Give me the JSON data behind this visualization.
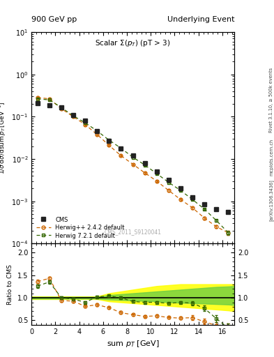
{
  "title_left": "900 GeV pp",
  "title_right": "Underlying Event",
  "plot_title": "Scalar Σ(p_{T}) (pT > 3)",
  "xlabel": "sum p_{T} [GeV]",
  "ylabel_main": "1/σ dσ/dsum p_{T} [GeV⁻¹]",
  "ylabel_ratio": "Ratio to CMS",
  "watermark": "CMS_2011_S9120041",
  "right_label_top": "Rivet 3.1.10, ≥ 500k events",
  "right_label_bot": "[arXiv:1306.3436]",
  "right_label_url": "mcplots.cern.ch",
  "cms_x": [
    0.5,
    1.5,
    2.5,
    3.5,
    4.5,
    5.5,
    6.5,
    7.5,
    8.5,
    9.5,
    10.5,
    11.5,
    12.5,
    13.5,
    14.5,
    15.5,
    16.5
  ],
  "cms_y": [
    0.21,
    0.185,
    0.165,
    0.108,
    0.08,
    0.045,
    0.027,
    0.018,
    0.012,
    0.008,
    0.005,
    0.0032,
    0.002,
    0.00125,
    0.00085,
    0.00065,
    0.00055
  ],
  "cms_yerr": [
    0.005,
    0.004,
    0.004,
    0.003,
    0.002,
    0.0015,
    0.001,
    0.0007,
    0.0005,
    0.0003,
    0.0002,
    0.00013,
    9e-05,
    6e-05,
    4e-05,
    3e-05,
    3e-05
  ],
  "hw242_x": [
    0.5,
    1.5,
    2.5,
    3.5,
    4.5,
    5.5,
    6.5,
    7.5,
    8.5,
    9.5,
    10.5,
    11.5,
    12.5,
    13.5,
    14.5,
    15.5,
    16.5
  ],
  "hw242_y": [
    0.285,
    0.265,
    0.155,
    0.1,
    0.065,
    0.038,
    0.021,
    0.012,
    0.0075,
    0.0047,
    0.003,
    0.0018,
    0.0011,
    0.0007,
    0.0004,
    0.00025,
    0.00018
  ],
  "hw242_yerr": [
    0.008,
    0.007,
    0.005,
    0.003,
    0.002,
    0.0013,
    0.0008,
    0.0005,
    0.0003,
    0.0002,
    0.00012,
    9e-05,
    6e-05,
    4e-05,
    3e-05,
    2e-05,
    2e-05
  ],
  "hw721_x": [
    0.5,
    1.5,
    2.5,
    3.5,
    4.5,
    5.5,
    6.5,
    7.5,
    8.5,
    9.5,
    10.5,
    11.5,
    12.5,
    13.5,
    14.5,
    15.5,
    16.5
  ],
  "hw721_y": [
    0.265,
    0.25,
    0.165,
    0.105,
    0.072,
    0.046,
    0.028,
    0.018,
    0.011,
    0.0072,
    0.0045,
    0.0028,
    0.0018,
    0.0011,
    0.00065,
    0.00035,
    0.00018
  ],
  "hw721_yerr": [
    0.007,
    0.006,
    0.005,
    0.003,
    0.002,
    0.0014,
    0.0009,
    0.0006,
    0.0004,
    0.00025,
    0.00015,
    0.0001,
    7e-05,
    5e-05,
    3e-05,
    2e-05,
    2e-05
  ],
  "cms_color": "#222222",
  "hw242_color": "#cc6600",
  "hw721_color": "#336600",
  "ratio_hw242": [
    1.36,
    1.43,
    0.94,
    0.925,
    0.81,
    0.845,
    0.78,
    0.67,
    0.625,
    0.588,
    0.6,
    0.5625,
    0.55,
    0.56,
    0.47,
    0.385,
    0.33
  ],
  "ratio_hw721": [
    1.26,
    1.35,
    1.0,
    0.97,
    0.9,
    1.02,
    1.04,
    1.0,
    0.917,
    0.9,
    0.9,
    0.875,
    0.9,
    0.88,
    0.765,
    0.538,
    0.33
  ],
  "ratio_hw242_yerr": [
    0.04,
    0.04,
    0.03,
    0.03,
    0.025,
    0.03,
    0.025,
    0.03,
    0.025,
    0.025,
    0.025,
    0.025,
    0.03,
    0.05,
    0.06,
    0.08,
    0.1
  ],
  "ratio_hw721_yerr": [
    0.04,
    0.04,
    0.03,
    0.03,
    0.025,
    0.03,
    0.025,
    0.03,
    0.025,
    0.025,
    0.025,
    0.025,
    0.03,
    0.05,
    0.06,
    0.08,
    0.1
  ],
  "band_x": [
    0.0,
    0.5,
    1.5,
    2.5,
    3.5,
    4.5,
    5.5,
    6.5,
    7.5,
    8.5,
    9.5,
    10.5,
    11.5,
    12.5,
    13.5,
    14.5,
    15.5,
    16.5,
    17.0
  ],
  "band_yellow_low": [
    0.97,
    0.97,
    0.97,
    0.97,
    0.97,
    0.97,
    0.97,
    0.92,
    0.9,
    0.88,
    0.86,
    0.84,
    0.82,
    0.8,
    0.78,
    0.76,
    0.74,
    0.72,
    0.7
  ],
  "band_yellow_high": [
    1.03,
    1.03,
    1.03,
    1.03,
    1.03,
    1.03,
    1.03,
    1.1,
    1.14,
    1.18,
    1.22,
    1.26,
    1.28,
    1.3,
    1.3,
    1.3,
    1.3,
    1.3,
    1.3
  ],
  "band_green_low": [
    0.98,
    0.98,
    0.98,
    0.98,
    0.98,
    0.98,
    0.98,
    0.96,
    0.95,
    0.94,
    0.93,
    0.92,
    0.9,
    0.89,
    0.88,
    0.87,
    0.86,
    0.85,
    0.84
  ],
  "band_green_high": [
    1.02,
    1.02,
    1.02,
    1.02,
    1.02,
    1.02,
    1.02,
    1.06,
    1.08,
    1.1,
    1.12,
    1.14,
    1.16,
    1.18,
    1.2,
    1.22,
    1.24,
    1.25,
    1.26
  ],
  "xlim": [
    0,
    17
  ],
  "ylim_main": [
    0.0001,
    10
  ],
  "ylim_ratio": [
    0.4,
    2.2
  ],
  "ratio_yticks": [
    0.5,
    1.0,
    1.5,
    2.0
  ]
}
